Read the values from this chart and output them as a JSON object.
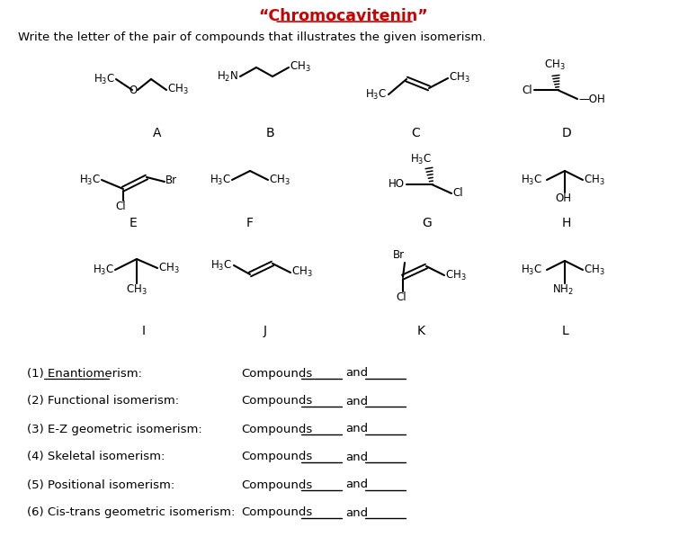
{
  "title": "“Chromocavitenin”",
  "subtitle": "Write the letter of the pair of compounds that illustrates the given isomerism.",
  "questions": [
    "(1) Enantiomerism:",
    "(2) Functional isomerism:",
    "(3) E-Z geometric isomerism:",
    "(4) Skeletal isomerism:",
    "(5) Positional isomerism:",
    "(6) Cis-trans geometric isomerism:"
  ],
  "bg_color": "#ffffff",
  "text_color": "#000000",
  "title_color": "#cc0000",
  "figsize": [
    7.65,
    6.07
  ],
  "dpi": 100
}
